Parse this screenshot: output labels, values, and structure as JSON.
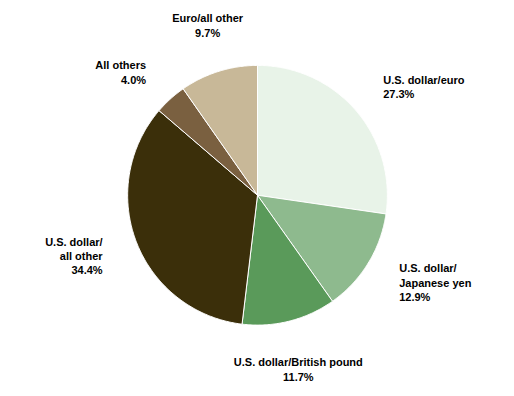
{
  "chart_data": {
    "type": "pie",
    "categories": [
      "U.S. dollar/euro",
      "U.S. dollar/\nJapanese yen",
      "U.S. dollar/British pound",
      "U.S. dollar/\nall other",
      "All others",
      "Euro/all other"
    ],
    "values": [
      27.3,
      12.9,
      11.7,
      34.4,
      4.0,
      9.7
    ],
    "value_labels": [
      "27.3%",
      "12.9%",
      "11.7%",
      "34.4%",
      "4.0%",
      "9.7%"
    ],
    "colors": [
      "#e8f3e8",
      "#8eba8e",
      "#5a9a5a",
      "#3b2f0a",
      "#7a6040",
      "#c8b898"
    ],
    "data_labels": true,
    "tick_labels": false
  }
}
